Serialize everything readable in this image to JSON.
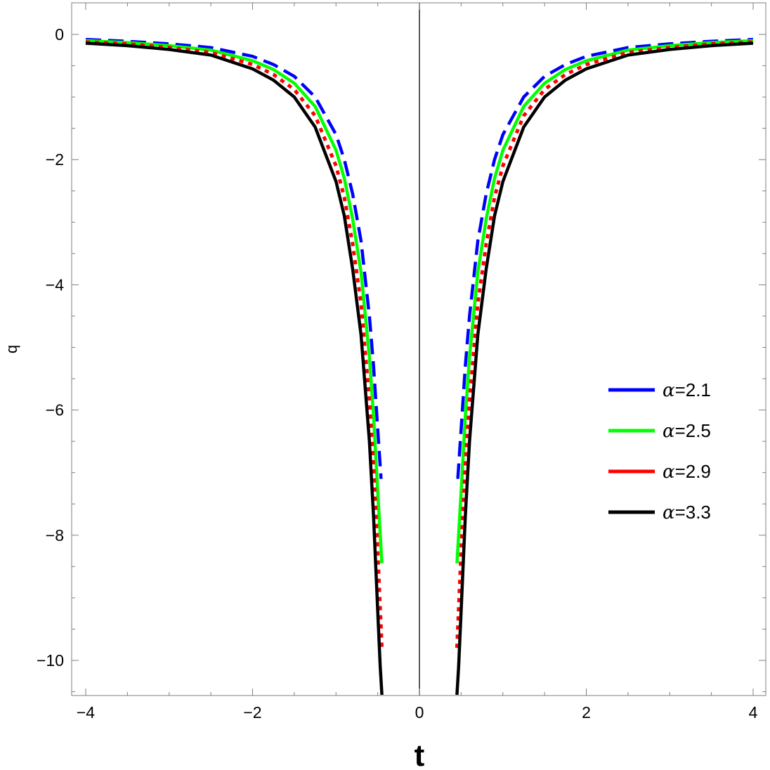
{
  "chart_data": {
    "type": "line",
    "xlabel": "t",
    "ylabel": "q",
    "xlim": [
      -4.2,
      4.2
    ],
    "ylim": [
      -10.55,
      0.5
    ],
    "x_ticks": [
      -4,
      -2,
      0,
      2,
      4
    ],
    "x_tick_labels": [
      "−4",
      "−2",
      "0",
      "2",
      "4"
    ],
    "y_ticks": [
      0,
      -2,
      -4,
      -6,
      -8,
      -10
    ],
    "y_tick_labels": [
      "0",
      "−2",
      "−4",
      "−6",
      "−8",
      "−10"
    ],
    "grid": false,
    "legend_position": "right",
    "series": [
      {
        "name": "α=2.1",
        "alpha_symbol": "α",
        "alpha_value": "=2.1",
        "color": "#0000ff",
        "style": "dashed",
        "x": [
          -4,
          -3.5,
          -3,
          -2.5,
          -2,
          -1.75,
          -1.5,
          -1.25,
          -1,
          -0.9,
          -0.8,
          -0.7,
          -0.6,
          -0.55,
          -0.5,
          -0.46,
          0.46,
          0.5,
          0.55,
          0.6,
          0.7,
          0.8,
          0.9,
          1,
          1.25,
          1.5,
          1.75,
          2,
          2.5,
          3,
          3.5,
          4
        ],
        "y": [
          -0.08,
          -0.11,
          -0.15,
          -0.21,
          -0.35,
          -0.48,
          -0.67,
          -1.0,
          -1.6,
          -2.0,
          -2.55,
          -3.3,
          -4.5,
          -5.3,
          -6.3,
          -7.1,
          -7.1,
          -6.3,
          -5.3,
          -4.5,
          -3.3,
          -2.55,
          -2.0,
          -1.6,
          -1.0,
          -0.67,
          -0.48,
          -0.35,
          -0.21,
          -0.15,
          -0.11,
          -0.08
        ]
      },
      {
        "name": "α=2.5",
        "alpha_symbol": "α",
        "alpha_value": "=2.5",
        "color": "#00ff00",
        "style": "solid",
        "x": [
          -4,
          -3.5,
          -3,
          -2.5,
          -2,
          -1.75,
          -1.5,
          -1.25,
          -1,
          -0.9,
          -0.8,
          -0.7,
          -0.6,
          -0.55,
          -0.5,
          -0.45,
          0.45,
          0.5,
          0.55,
          0.6,
          0.7,
          0.8,
          0.9,
          1,
          1.25,
          1.5,
          1.75,
          2,
          2.5,
          3,
          3.5,
          4
        ],
        "y": [
          -0.1,
          -0.13,
          -0.18,
          -0.25,
          -0.42,
          -0.56,
          -0.78,
          -1.15,
          -1.85,
          -2.3,
          -2.95,
          -3.8,
          -5.15,
          -6.1,
          -7.3,
          -8.45,
          -8.45,
          -7.3,
          -6.1,
          -5.15,
          -3.8,
          -2.95,
          -2.3,
          -1.85,
          -1.15,
          -0.78,
          -0.56,
          -0.42,
          -0.25,
          -0.18,
          -0.13,
          -0.1
        ]
      },
      {
        "name": "α=2.9",
        "alpha_symbol": "α",
        "alpha_value": "=2.9",
        "color": "#ff0000",
        "style": "dotted",
        "x": [
          -4,
          -3.5,
          -3,
          -2.5,
          -2,
          -1.75,
          -1.5,
          -1.25,
          -1,
          -0.9,
          -0.8,
          -0.7,
          -0.6,
          -0.55,
          -0.5,
          -0.45,
          0.45,
          0.5,
          0.55,
          0.6,
          0.7,
          0.8,
          0.9,
          1,
          1.25,
          1.5,
          1.75,
          2,
          2.5,
          3,
          3.5,
          4
        ],
        "y": [
          -0.12,
          -0.15,
          -0.21,
          -0.29,
          -0.48,
          -0.64,
          -0.88,
          -1.3,
          -2.1,
          -2.6,
          -3.35,
          -4.3,
          -5.85,
          -6.9,
          -8.25,
          -9.8,
          -9.8,
          -8.25,
          -6.9,
          -5.85,
          -4.3,
          -3.35,
          -2.6,
          -2.1,
          -1.3,
          -0.88,
          -0.64,
          -0.48,
          -0.29,
          -0.21,
          -0.15,
          -0.12
        ]
      },
      {
        "name": "α=3.3",
        "alpha_symbol": "α",
        "alpha_value": "=3.3",
        "color": "#000000",
        "style": "solid",
        "x": [
          -4,
          -3.5,
          -3,
          -2.5,
          -2,
          -1.75,
          -1.5,
          -1.25,
          -1,
          -0.9,
          -0.8,
          -0.7,
          -0.6,
          -0.55,
          -0.5,
          -0.47,
          -0.45,
          0.45,
          0.47,
          0.5,
          0.55,
          0.6,
          0.7,
          0.8,
          0.9,
          1,
          1.25,
          1.5,
          1.75,
          2,
          2.5,
          3,
          3.5,
          4
        ],
        "y": [
          -0.14,
          -0.18,
          -0.24,
          -0.33,
          -0.55,
          -0.73,
          -1.0,
          -1.48,
          -2.35,
          -2.9,
          -3.75,
          -4.8,
          -6.5,
          -7.7,
          -9.2,
          -10.1,
          -10.55,
          -10.55,
          -10.1,
          -9.2,
          -7.7,
          -6.5,
          -4.8,
          -3.75,
          -2.9,
          -2.35,
          -1.48,
          -1.0,
          -0.73,
          -0.55,
          -0.33,
          -0.24,
          -0.18,
          -0.14
        ]
      }
    ]
  }
}
